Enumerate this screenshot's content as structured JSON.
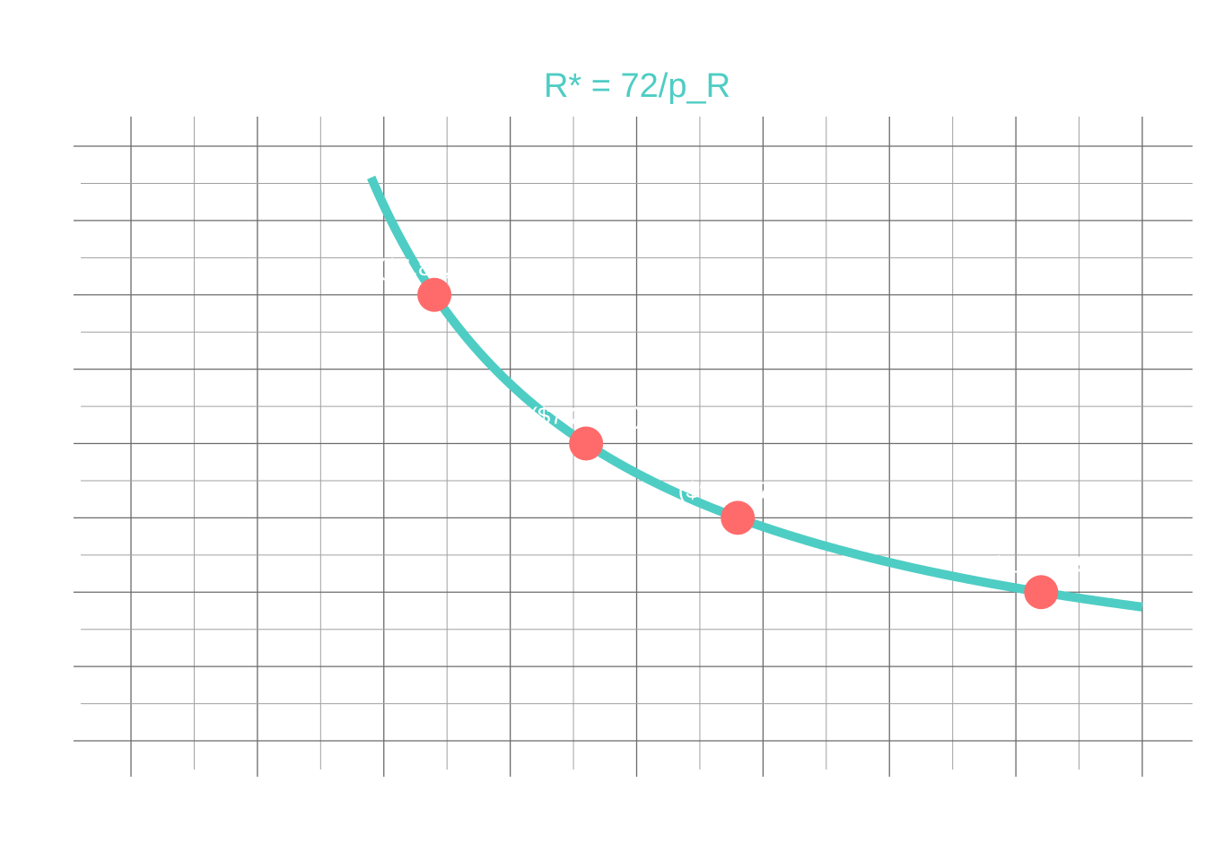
{
  "chart_data": {
    "type": "line",
    "title": "R* = 72/p_R",
    "xlabel": "",
    "ylabel": "",
    "xlim": [
      0,
      16
    ],
    "ylim": [
      -0.4,
      8.4
    ],
    "grid": true,
    "curve": {
      "formula": "72/p_R",
      "x_start": 3.8,
      "x_end": 16
    },
    "points": [
      {
        "x": 4.8,
        "y": 6,
        "label": "($4.80, 15)"
      },
      {
        "x": 7.2,
        "y": 4,
        "label": "($7.20, 10)"
      },
      {
        "x": 9.6,
        "y": 3,
        "label": "($9.60, 7.5)"
      },
      {
        "x": 14.4,
        "y": 2,
        "label": "($14.40, 5)"
      }
    ],
    "colors": {
      "curve": "#4ecdc4",
      "points": "#ff6b6b",
      "title": "#4ecdc4",
      "labels": "#ffffff",
      "grid_major": "#6b6b6b",
      "grid_minor": "#a0a0a0"
    }
  }
}
